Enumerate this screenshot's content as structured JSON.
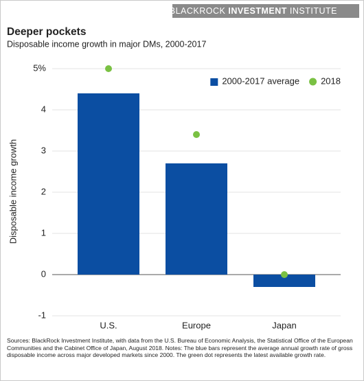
{
  "header": {
    "brand": [
      "BLACKROCK",
      "INVESTMENT",
      "INSTITUTE"
    ]
  },
  "chart_data": {
    "type": "bar",
    "title": "Deeper pockets",
    "subtitle": "Disposable income growth in major DMs, 2000-2017",
    "y_label": "Disposable income growth",
    "categories": [
      "U.S.",
      "Europe",
      "Japan"
    ],
    "series": [
      {
        "name": "2000-2017 average",
        "type": "bar",
        "color": "#0b4ea2",
        "values": [
          4.4,
          2.7,
          -0.3
        ]
      },
      {
        "name": "2018",
        "type": "dot",
        "color": "#7ac143",
        "values": [
          5.0,
          3.4,
          0.0
        ]
      }
    ],
    "ylim": [
      -1,
      5
    ],
    "yticks": [
      {
        "value": 5,
        "label": "5%"
      },
      4,
      3,
      2,
      1,
      0,
      -1
    ],
    "grid": true,
    "legend": "top-right",
    "notes": "Sources: BlackRock Investment Institute, with data from the U.S. Bureau of Economic Analysis, the Statistical Office of the European Communities and the Cabinet Office of Japan, August 2018. Notes: The blue bars represent the average annual growth rate of gross disposable income across major developed markets since 2000. The green dot represents the latest available growth rate."
  }
}
